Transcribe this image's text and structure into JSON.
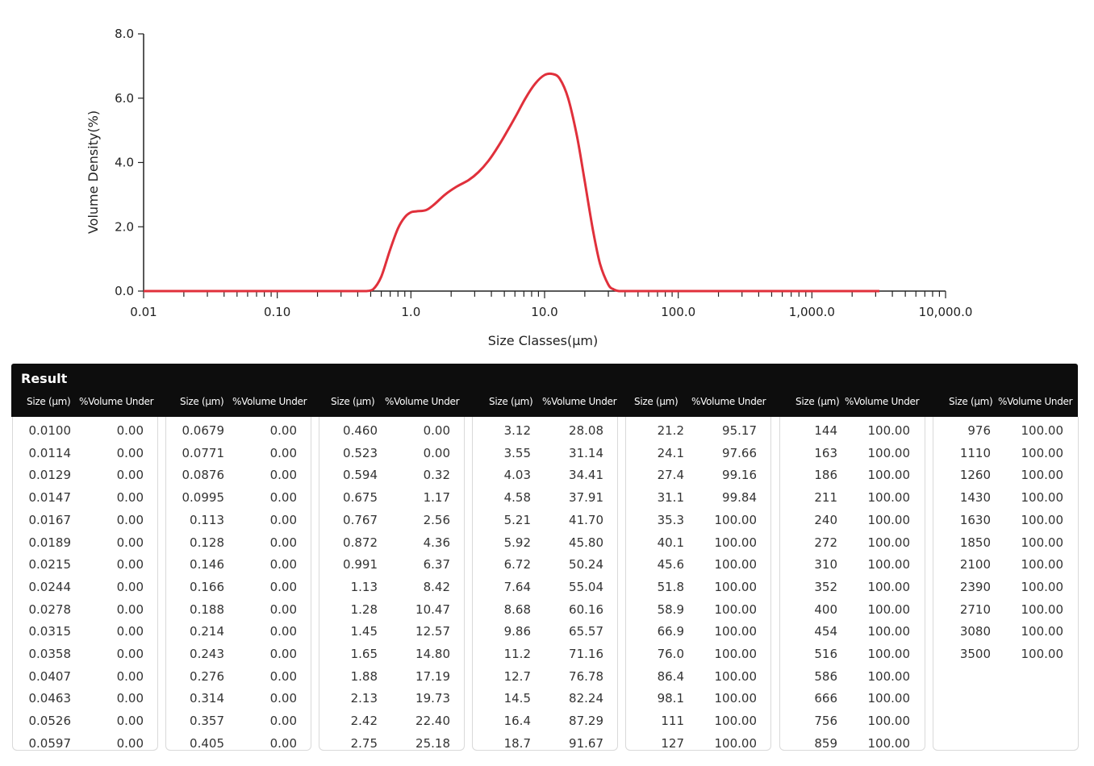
{
  "chart_data": {
    "type": "line",
    "xscale": "log",
    "xlim": [
      0.01,
      10000
    ],
    "ylim": [
      0,
      8
    ],
    "xlabel": "Size Classes(μm)",
    "ylabel": "Volume Density(%)",
    "x_tick_labels": [
      "0.01",
      "0.10",
      "1.0",
      "10.0",
      "100.0",
      "1,000.0",
      "10,000.0"
    ],
    "y_tick_labels": [
      "0.0",
      "2.0",
      "4.0",
      "6.0",
      "8.0"
    ],
    "line_color": "#e0303b",
    "series": [
      {
        "x": [
          0.01,
          0.02,
          0.05,
          0.1,
          0.2,
          0.4,
          0.46,
          0.52,
          0.6,
          0.7,
          0.8,
          0.9,
          1.0,
          1.1,
          1.3,
          1.5,
          1.8,
          2.2,
          2.7,
          3.2,
          3.8,
          4.5,
          5.3,
          6.2,
          7.2,
          8.5,
          10.0,
          11.5,
          13.0,
          15.0,
          17.5,
          20.0,
          23.0,
          26.0,
          30.0,
          33.0,
          36.0,
          40.0,
          60.0,
          100,
          500,
          1000,
          3200
        ],
        "y": [
          0,
          0,
          0,
          0,
          0,
          0,
          0,
          0.05,
          0.45,
          1.3,
          1.95,
          2.3,
          2.45,
          2.48,
          2.52,
          2.7,
          3.0,
          3.25,
          3.45,
          3.7,
          4.05,
          4.5,
          5.0,
          5.5,
          6.0,
          6.45,
          6.72,
          6.75,
          6.6,
          6.0,
          4.8,
          3.4,
          1.9,
          0.85,
          0.2,
          0.05,
          0,
          0,
          0,
          0,
          0,
          0,
          0
        ]
      }
    ]
  },
  "result": {
    "title": "Result",
    "size_header": "Size (μm)",
    "volume_header": "%Volume Under",
    "columns": [
      {
        "sizes": [
          "0.0100",
          "0.0114",
          "0.0129",
          "0.0147",
          "0.0167",
          "0.0189",
          "0.0215",
          "0.0244",
          "0.0278",
          "0.0315",
          "0.0358",
          "0.0407",
          "0.0463",
          "0.0526",
          "0.0597"
        ],
        "values": [
          "0.00",
          "0.00",
          "0.00",
          "0.00",
          "0.00",
          "0.00",
          "0.00",
          "0.00",
          "0.00",
          "0.00",
          "0.00",
          "0.00",
          "0.00",
          "0.00",
          "0.00"
        ]
      },
      {
        "sizes": [
          "0.0679",
          "0.0771",
          "0.0876",
          "0.0995",
          "0.113",
          "0.128",
          "0.146",
          "0.166",
          "0.188",
          "0.214",
          "0.243",
          "0.276",
          "0.314",
          "0.357",
          "0.405"
        ],
        "values": [
          "0.00",
          "0.00",
          "0.00",
          "0.00",
          "0.00",
          "0.00",
          "0.00",
          "0.00",
          "0.00",
          "0.00",
          "0.00",
          "0.00",
          "0.00",
          "0.00",
          "0.00"
        ]
      },
      {
        "sizes": [
          "0.460",
          "0.523",
          "0.594",
          "0.675",
          "0.767",
          "0.872",
          "0.991",
          "1.13",
          "1.28",
          "1.45",
          "1.65",
          "1.88",
          "2.13",
          "2.42",
          "2.75"
        ],
        "values": [
          "0.00",
          "0.00",
          "0.32",
          "1.17",
          "2.56",
          "4.36",
          "6.37",
          "8.42",
          "10.47",
          "12.57",
          "14.80",
          "17.19",
          "19.73",
          "22.40",
          "25.18"
        ]
      },
      {
        "sizes": [
          "3.12",
          "3.55",
          "4.03",
          "4.58",
          "5.21",
          "5.92",
          "6.72",
          "7.64",
          "8.68",
          "9.86",
          "11.2",
          "12.7",
          "14.5",
          "16.4",
          "18.7"
        ],
        "values": [
          "28.08",
          "31.14",
          "34.41",
          "37.91",
          "41.70",
          "45.80",
          "50.24",
          "55.04",
          "60.16",
          "65.57",
          "71.16",
          "76.78",
          "82.24",
          "87.29",
          "91.67"
        ]
      },
      {
        "sizes": [
          "21.2",
          "24.1",
          "27.4",
          "31.1",
          "35.3",
          "40.1",
          "45.6",
          "51.8",
          "58.9",
          "66.9",
          "76.0",
          "86.4",
          "98.1",
          "111",
          "127"
        ],
        "values": [
          "95.17",
          "97.66",
          "99.16",
          "99.84",
          "100.00",
          "100.00",
          "100.00",
          "100.00",
          "100.00",
          "100.00",
          "100.00",
          "100.00",
          "100.00",
          "100.00",
          "100.00"
        ]
      },
      {
        "sizes": [
          "144",
          "163",
          "186",
          "211",
          "240",
          "272",
          "310",
          "352",
          "400",
          "454",
          "516",
          "586",
          "666",
          "756",
          "859"
        ],
        "values": [
          "100.00",
          "100.00",
          "100.00",
          "100.00",
          "100.00",
          "100.00",
          "100.00",
          "100.00",
          "100.00",
          "100.00",
          "100.00",
          "100.00",
          "100.00",
          "100.00",
          "100.00"
        ]
      },
      {
        "sizes": [
          "976",
          "1110",
          "1260",
          "1430",
          "1630",
          "1850",
          "2100",
          "2390",
          "2710",
          "3080",
          "3500"
        ],
        "values": [
          "100.00",
          "100.00",
          "100.00",
          "100.00",
          "100.00",
          "100.00",
          "100.00",
          "100.00",
          "100.00",
          "100.00",
          "100.00"
        ]
      }
    ]
  }
}
